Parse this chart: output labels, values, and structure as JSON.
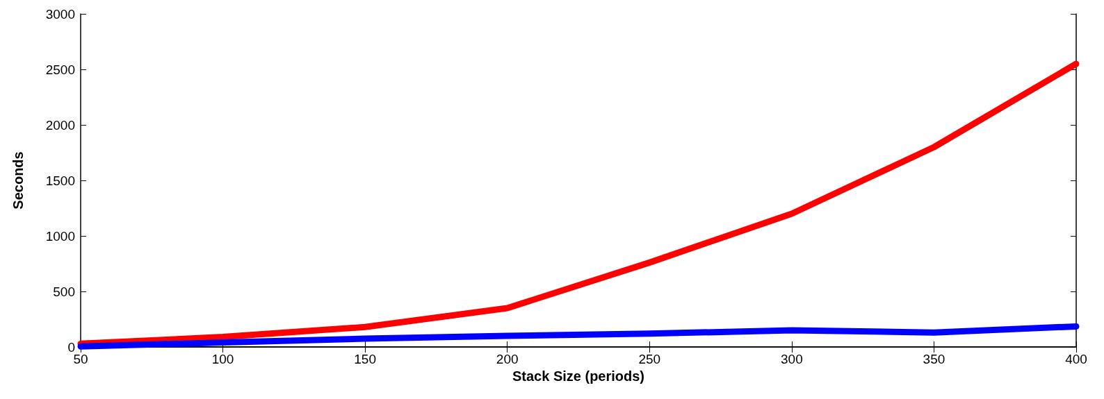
{
  "chart_data": {
    "type": "line",
    "xlabel": "Stack Size (periods)",
    "ylabel": "Seconds",
    "x": [
      50,
      100,
      150,
      200,
      250,
      300,
      350,
      400
    ],
    "series": [
      {
        "color": "#ff0000",
        "values": [
          30,
          90,
          180,
          350,
          760,
          1200,
          1800,
          2550
        ]
      },
      {
        "color": "#0000ff",
        "values": [
          5,
          40,
          75,
          100,
          120,
          150,
          130,
          185
        ]
      }
    ],
    "xlim": [
      50,
      400
    ],
    "xticks": [
      50,
      100,
      150,
      200,
      250,
      300,
      350,
      400
    ],
    "ylim": [
      0,
      3000
    ],
    "yticks": [
      0,
      500,
      1000,
      1500,
      2000,
      2500,
      3000
    ],
    "grid": false,
    "marker": "none",
    "line_style": "solid"
  }
}
